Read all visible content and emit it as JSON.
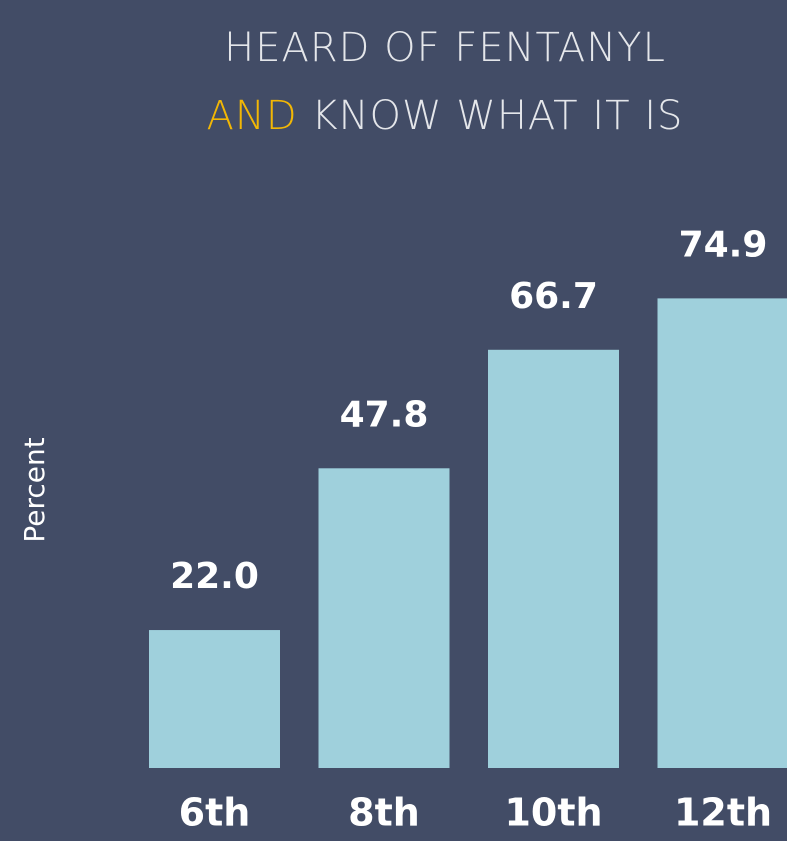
{
  "chart_data": {
    "type": "bar",
    "title": [
      "HEARD OF FENTANYL",
      "AND",
      "KNOW WHAT IT IS"
    ],
    "title_highlight_color": "#f2b705",
    "y_label": "Percent",
    "categories": [
      "6th",
      "8th",
      "10th",
      "12th"
    ],
    "values": [
      22.0,
      47.8,
      66.7,
      74.9
    ],
    "value_labels": [
      "22.0",
      "47.8",
      "66.7",
      "74.9"
    ],
    "color": "#9fd0dc",
    "ylim": [
      0,
      100
    ]
  }
}
